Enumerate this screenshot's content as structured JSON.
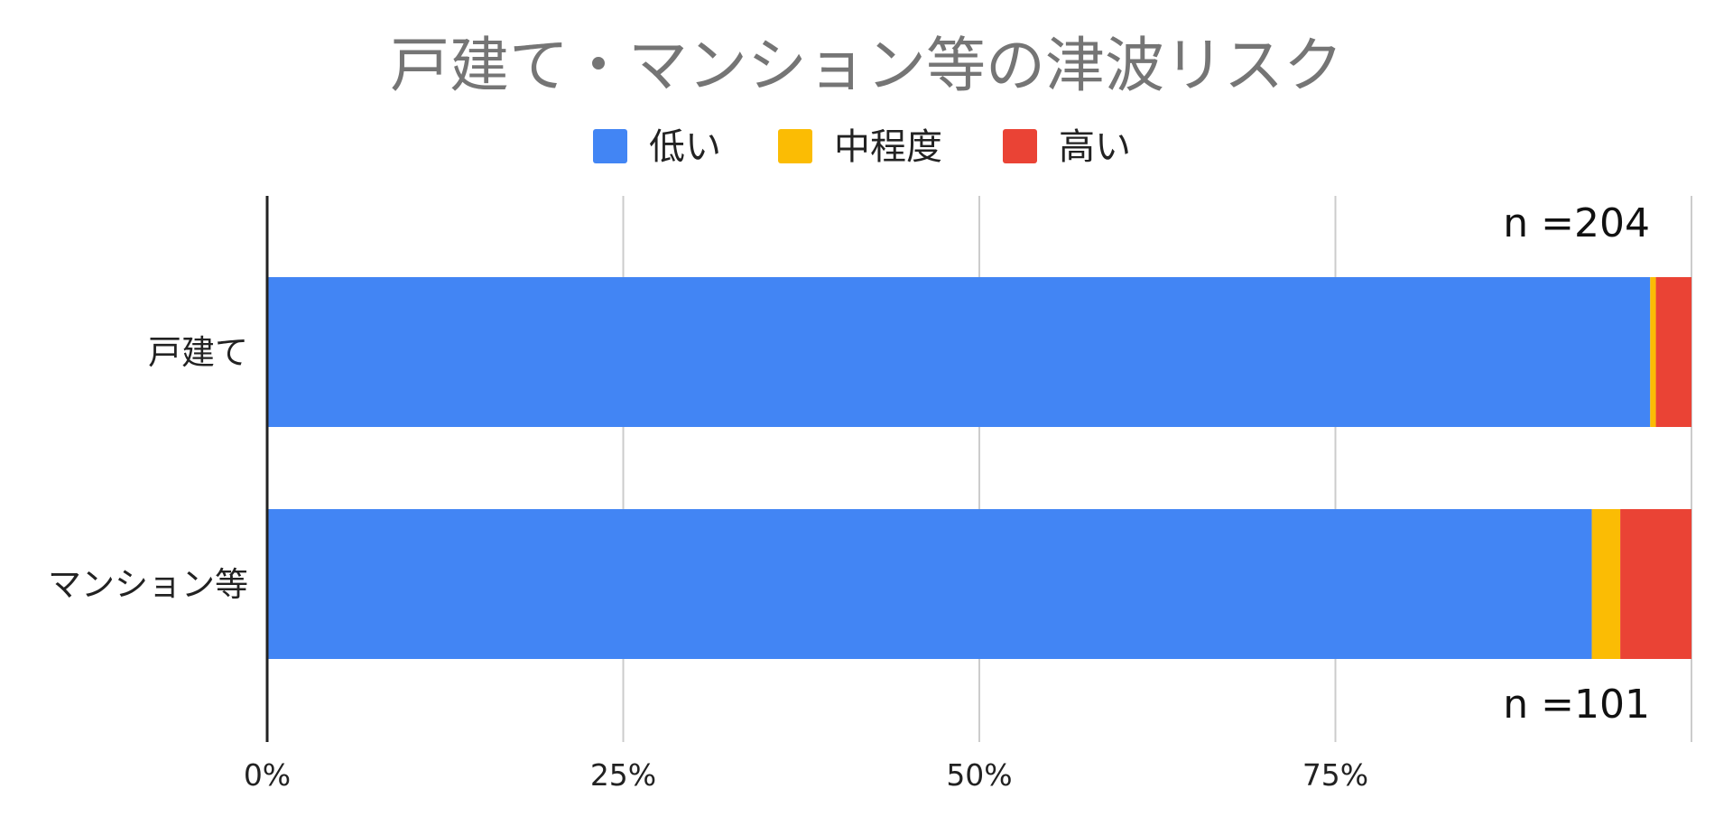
{
  "chart_data": {
    "type": "bar",
    "orientation": "horizontal",
    "stacked": "percent",
    "title": "戸建て・マンション等の津波リスク",
    "categories": [
      "戸建て",
      "マンション等"
    ],
    "series": [
      {
        "name": "低い",
        "color": "#4285F4",
        "values": [
          97.1,
          93.0
        ]
      },
      {
        "name": "中程度",
        "color": "#FBBC04",
        "values": [
          0.4,
          2.0
        ]
      },
      {
        "name": "高い",
        "color": "#EA4335",
        "values": [
          2.5,
          5.0
        ]
      }
    ],
    "x_ticks": [
      "0%",
      "25%",
      "50%",
      "75%"
    ],
    "xlim": [
      0,
      100
    ],
    "legend_position": "top",
    "grid": true,
    "annotations": [
      "n =204",
      "n =101"
    ]
  }
}
